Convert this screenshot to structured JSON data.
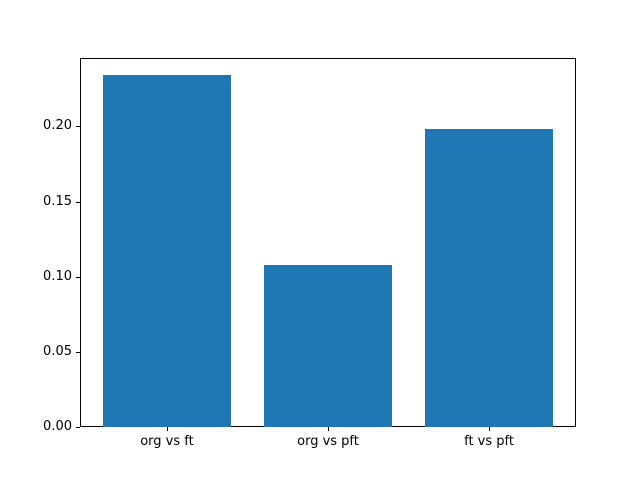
{
  "chart_data": {
    "type": "bar",
    "title": "",
    "xlabel": "",
    "ylabel": "",
    "categories": [
      "org vs ft",
      "org vs pft",
      "ft vs pft"
    ],
    "values": [
      0.234,
      0.108,
      0.198
    ],
    "ylim": [
      0,
      0.2455
    ],
    "xlim": [
      -0.54,
      2.54
    ],
    "bar_width": 0.8,
    "bar_color": "#1f77b4",
    "axis_color": "#000000",
    "background_color": "#ffffff",
    "grid": false,
    "legend": null,
    "yticks": [
      {
        "value": 0.0,
        "label": "0.00"
      },
      {
        "value": 0.05,
        "label": "0.05"
      },
      {
        "value": 0.1,
        "label": "0.10"
      },
      {
        "value": 0.15,
        "label": "0.15"
      },
      {
        "value": 0.2,
        "label": "0.20"
      }
    ]
  }
}
